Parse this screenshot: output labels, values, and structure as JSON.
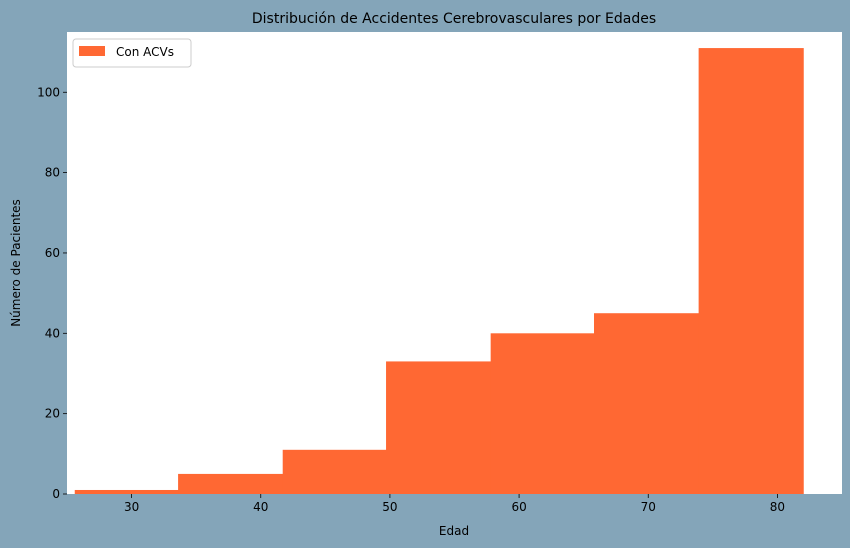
{
  "chart_data": {
    "type": "bar",
    "title": "Distribución de Accidentes Cerebrovasculares por Edades",
    "xlabel": "Edad",
    "ylabel": "Número de Pacientes",
    "legend": {
      "position": "upper-left",
      "label": "Con ACVs"
    },
    "series": [
      {
        "name": "Con ACVs",
        "color": "#ff6833",
        "bins": [
          {
            "x0": 25.6,
            "x1": 33.6,
            "value": 1
          },
          {
            "x0": 33.6,
            "x1": 41.7,
            "value": 5
          },
          {
            "x0": 41.7,
            "x1": 49.7,
            "value": 11
          },
          {
            "x0": 49.7,
            "x1": 57.8,
            "value": 33
          },
          {
            "x0": 57.8,
            "x1": 65.8,
            "value": 40
          },
          {
            "x0": 65.8,
            "x1": 73.9,
            "value": 45
          },
          {
            "x0": 73.9,
            "x1": 82.0,
            "value": 111
          }
        ]
      }
    ],
    "xlim": [
      25.0,
      85.0
    ],
    "ylim": [
      0,
      115
    ],
    "xticks": [
      30,
      40,
      50,
      60,
      70,
      80
    ],
    "yticks": [
      0,
      20,
      40,
      60,
      80,
      100
    ],
    "grid": false,
    "plot_background": "#ffffff",
    "figure_background": "#84a5b9"
  }
}
